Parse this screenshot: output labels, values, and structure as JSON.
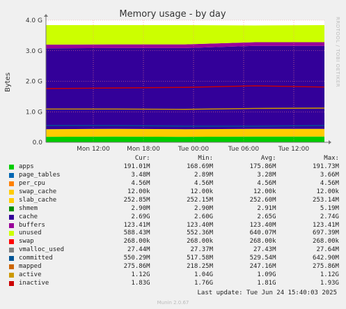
{
  "chart_data": {
    "type": "area",
    "title": "Memory usage - by day",
    "ylabel": "Bytes",
    "side_label": "RRDTOOL / TOBI OETIKER",
    "y_ticks": [
      "0.0",
      "1.0 G",
      "2.0 G",
      "3.0 G",
      "4.0 G"
    ],
    "y_values": [
      0,
      1,
      2,
      3,
      4
    ],
    "ylim": [
      0,
      4
    ],
    "x_ticks": [
      "Mon 12:00",
      "Mon 18:00",
      "Tue 00:00",
      "Tue 06:00",
      "Tue 12:00"
    ],
    "grid": true,
    "stack_series": [
      {
        "name": "apps",
        "color": "#00CC00",
        "values": [
          0.18,
          0.19,
          0.18,
          0.19,
          0.19
        ]
      },
      {
        "name": "slab_cache",
        "color": "#FFCC00",
        "values": [
          0.25,
          0.25,
          0.25,
          0.25,
          0.25
        ]
      },
      {
        "name": "cache",
        "color": "#330099",
        "values": [
          2.65,
          2.65,
          2.66,
          2.72,
          2.72
        ]
      },
      {
        "name": "buffers",
        "color": "#990099",
        "values": [
          0.12,
          0.12,
          0.12,
          0.12,
          0.12
        ]
      },
      {
        "name": "unused",
        "color": "#CCFF00",
        "values": [
          0.64,
          0.63,
          0.63,
          0.55,
          0.56
        ]
      }
    ],
    "line_series": [
      {
        "name": "inactive",
        "color": "#CC0000",
        "values": [
          1.76,
          1.78,
          1.8,
          1.85,
          1.81
        ]
      },
      {
        "name": "active",
        "color": "#CC9900",
        "values": [
          1.09,
          1.09,
          1.08,
          1.11,
          1.12
        ]
      },
      {
        "name": "committed",
        "color": "#005596",
        "values": [
          0.55,
          0.55,
          0.53,
          0.53,
          0.55
        ]
      }
    ]
  },
  "legend": {
    "headers": [
      "Cur:",
      "Min:",
      "Avg:",
      "Max:"
    ],
    "rows": [
      {
        "name": "apps",
        "color": "#00CC00",
        "cur": "191.01M",
        "min": "168.69M",
        "avg": "175.86M",
        "max": "191.73M"
      },
      {
        "name": "page_tables",
        "color": "#0066B3",
        "cur": "3.48M",
        "min": "2.89M",
        "avg": "3.28M",
        "max": "3.66M"
      },
      {
        "name": "per_cpu",
        "color": "#FF8000",
        "cur": "4.56M",
        "min": "4.56M",
        "avg": "4.56M",
        "max": "4.56M"
      },
      {
        "name": "swap_cache",
        "color": "#FFCC00",
        "cur": "12.00k",
        "min": "12.00k",
        "avg": "12.00k",
        "max": "12.00k"
      },
      {
        "name": "slab_cache",
        "color": "#FFCC00",
        "cur": "252.85M",
        "min": "252.15M",
        "avg": "252.60M",
        "max": "253.14M"
      },
      {
        "name": "shmem",
        "color": "#008F00",
        "cur": "2.90M",
        "min": "2.90M",
        "avg": "2.91M",
        "max": "5.19M"
      },
      {
        "name": "cache",
        "color": "#330099",
        "cur": "2.69G",
        "min": "2.60G",
        "avg": "2.65G",
        "max": "2.74G"
      },
      {
        "name": "buffers",
        "color": "#990099",
        "cur": "123.41M",
        "min": "123.40M",
        "avg": "123.40M",
        "max": "123.41M"
      },
      {
        "name": "unused",
        "color": "#CCFF00",
        "cur": "588.43M",
        "min": "552.36M",
        "avg": "640.07M",
        "max": "697.39M"
      },
      {
        "name": "swap",
        "color": "#FF0000",
        "cur": "268.00k",
        "min": "268.00k",
        "avg": "268.00k",
        "max": "268.00k"
      },
      {
        "name": "vmalloc_used",
        "color": "#808080",
        "cur": "27.44M",
        "min": "27.37M",
        "avg": "27.43M",
        "max": "27.64M"
      },
      {
        "name": "committed",
        "color": "#005596",
        "cur": "550.29M",
        "min": "517.58M",
        "avg": "529.54M",
        "max": "642.90M"
      },
      {
        "name": "mapped",
        "color": "#CC6600",
        "cur": "275.86M",
        "min": "218.25M",
        "avg": "247.16M",
        "max": "275.86M"
      },
      {
        "name": "active",
        "color": "#CC9900",
        "cur": "1.12G",
        "min": "1.04G",
        "avg": "1.09G",
        "max": "1.12G"
      },
      {
        "name": "inactive",
        "color": "#CC0000",
        "cur": "1.83G",
        "min": "1.76G",
        "avg": "1.81G",
        "max": "1.93G"
      }
    ]
  },
  "footer": {
    "last_update": "Last update: Tue Jun 24 15:40:03 2025",
    "munin": "Munin 2.0.67"
  }
}
